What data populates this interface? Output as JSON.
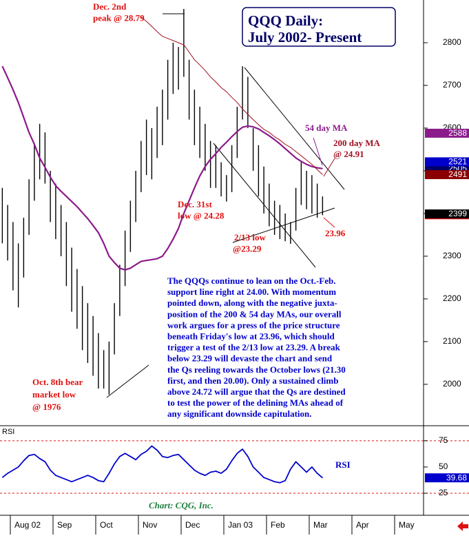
{
  "chart_data": [
    {
      "type": "hl-bar",
      "title": [
        "QQQ Daily:",
        "July 2002- Present"
      ],
      "categories": [
        null,
        null,
        "Aug 02",
        null,
        null,
        null,
        null,
        null,
        null,
        null,
        "Sep",
        null,
        null,
        null,
        null,
        null,
        null,
        null,
        "Oct",
        null,
        null,
        null,
        null,
        null,
        null,
        null,
        "Nov",
        null,
        null,
        null,
        null,
        null,
        null,
        null,
        "Dec",
        null,
        null,
        null,
        null,
        null,
        null,
        null,
        "Jan 03",
        null,
        null,
        null,
        null,
        null,
        null,
        null,
        "Feb",
        null,
        null,
        null,
        null,
        null,
        null,
        null,
        "Mar",
        null,
        null,
        null,
        null,
        null,
        null,
        null,
        "Apr",
        null,
        null,
        null,
        null,
        null,
        null,
        null,
        "May",
        null,
        null,
        null
      ],
      "color": "#000000",
      "high": [
        2460,
        2420,
        2380,
        2330,
        2390,
        2480,
        2560,
        2610,
        2590,
        2500,
        2470,
        2420,
        2380,
        2320,
        2270,
        2230,
        2190,
        2160,
        2120,
        2080,
        2100,
        2190,
        2280,
        2360,
        2430,
        2500,
        2570,
        2620,
        2600,
        2650,
        2690,
        2760,
        2800,
        2790,
        2879,
        2760,
        2690,
        2650,
        2610,
        2570,
        2560,
        2520,
        2490,
        2560,
        2650,
        2745,
        2720,
        2600,
        2560,
        2510,
        2470,
        2430,
        2420,
        2400,
        2380,
        2460,
        2520,
        2500,
        2490,
        2470,
        2440,
        null,
        null,
        null,
        null,
        null,
        null,
        null,
        null,
        null,
        null,
        null,
        null,
        null,
        null,
        null,
        null,
        null
      ],
      "low": [
        2330,
        2290,
        2220,
        2180,
        2250,
        2350,
        2430,
        2480,
        2470,
        2380,
        2340,
        2300,
        2230,
        2170,
        2130,
        2080,
        2050,
        2020,
        1990,
        1990,
        1976,
        2070,
        2160,
        2230,
        2310,
        2380,
        2450,
        2490,
        2480,
        2530,
        2560,
        2620,
        2680,
        2690,
        2720,
        2620,
        2560,
        2530,
        2500,
        2460,
        2460,
        2440,
        2428,
        2450,
        2530,
        2620,
        2600,
        2500,
        2440,
        2400,
        2370,
        2350,
        2340,
        2335,
        2329,
        2360,
        2420,
        2410,
        2400,
        2390,
        2396,
        null,
        null,
        null,
        null,
        null,
        null,
        null,
        null,
        null,
        null,
        null,
        null,
        null,
        null,
        null,
        null,
        null
      ],
      "series": [
        {
          "name": "54 day MA",
          "color": "#8b1a8b",
          "values": [
            2745,
            2718,
            2690,
            2660,
            2625,
            2590,
            2562,
            2530,
            2508,
            2485,
            2465,
            2452,
            2440,
            2428,
            2416,
            2402,
            2388,
            2372,
            2355,
            2330,
            2300,
            2285,
            2272,
            2268,
            2272,
            2280,
            2288,
            2290,
            2292,
            2294,
            2300,
            2318,
            2340,
            2365,
            2400,
            2430,
            2460,
            2488,
            2510,
            2527,
            2540,
            2555,
            2567,
            2580,
            2592,
            2602,
            2605,
            2603,
            2598,
            2590,
            2582,
            2573,
            2563,
            2552,
            2541,
            2530,
            2522,
            2515,
            2510,
            2507,
            2505,
            null,
            null,
            null,
            null,
            null,
            null,
            null,
            null,
            null,
            null,
            null,
            null,
            null,
            null,
            null,
            null,
            null
          ]
        },
        {
          "name": "200 day MA",
          "color": "#a01020",
          "values": [
            null,
            null,
            null,
            null,
            null,
            null,
            null,
            null,
            null,
            null,
            null,
            null,
            null,
            null,
            null,
            null,
            null,
            null,
            null,
            null,
            null,
            null,
            null,
            null,
            null,
            null,
            2860,
            2850,
            2838,
            2826,
            2815,
            2810,
            2805,
            2800,
            2795,
            2778,
            2760,
            2748,
            2735,
            2720,
            2708,
            2695,
            2685,
            2672,
            2660,
            2645,
            2632,
            2620,
            2608,
            2597,
            2590,
            2580,
            2572,
            2562,
            2555,
            2545,
            2535,
            2525,
            2515,
            2503,
            2491,
            null,
            null,
            null,
            null,
            null,
            null,
            null,
            null,
            null,
            null,
            null,
            null,
            null,
            null,
            null,
            null,
            null
          ]
        }
      ],
      "ylim": [
        1903,
        2900
      ],
      "yticks": [
        2000,
        2100,
        2200,
        2300,
        2400,
        2500,
        2600,
        2700,
        2800
      ],
      "price_markers": [
        {
          "value": 2588,
          "color": "#8b1a8b"
        },
        {
          "value": 2397,
          "color": "#e01010"
        },
        {
          "value": 2521,
          "color": "#0000cc"
        },
        {
          "value": 2399,
          "color": "#000000"
        }
      ],
      "annotations": [
        {
          "lines": [
            "Dec. 2nd",
            "peak @ 28.79"
          ],
          "color": "#e01010"
        },
        {
          "lines": [
            "Dec. 31st",
            "low @ 24.28"
          ],
          "color": "#e01010"
        },
        {
          "lines": [
            "2/13  low",
            "@23.29"
          ],
          "color": "#e01010"
        },
        {
          "lines": [
            "23.96"
          ],
          "color": "#e01010"
        },
        {
          "lines": [
            "Oct. 8th bear",
            "market low",
            "@ 1976"
          ],
          "color": "#e01010"
        },
        {
          "lines": [
            "@ 24.91"
          ],
          "color": "#a01020"
        }
      ],
      "commentary": {
        "color": "#0000cc",
        "lines": [
          "The QQQs continue to lean on the Oct.-Feb.",
          "support line right at 24.00. With momentum",
          "pointed down, along with the negative juxta-",
          "position of the 200 & 54 day MAs, our overall",
          "work argues for a press of the price structure",
          "beneath Friday's low at 23.96, which should",
          "trigger a test of the 2/13 low at 23.29. A break",
          "below  23.29 will devaste the chart and send",
          "the Qs reeling towards the October lows (21.30",
          "first, and then 20.00). Only a sustained climb",
          "above 24.72 will argue that the Qs are destined",
          "to test the power of the delining MAs ahead of",
          "any significant downside capitulation."
        ]
      }
    },
    {
      "type": "line",
      "panel_label": "RSI",
      "series": [
        {
          "name": "RSI",
          "color": "#0000cc",
          "values": [
            40,
            44,
            47,
            50,
            56,
            61,
            62,
            58,
            55,
            47,
            42,
            40,
            38,
            36,
            38,
            40,
            42,
            40,
            37,
            36,
            44,
            53,
            60,
            63,
            60,
            57,
            62,
            65,
            70,
            66,
            60,
            59,
            61,
            62,
            57,
            52,
            47,
            44,
            42,
            45,
            46,
            44,
            48,
            56,
            63,
            67,
            60,
            50,
            45,
            40,
            38,
            36,
            35,
            37,
            48,
            55,
            50,
            45,
            50,
            44,
            39.68,
            null,
            null,
            null,
            null,
            null,
            null,
            null,
            null,
            null,
            null,
            null,
            null,
            null,
            null,
            null,
            null,
            null
          ]
        }
      ],
      "ylim": [
        6,
        88
      ],
      "yticks": [
        25,
        50,
        75
      ],
      "guides": [
        25,
        75
      ],
      "source": "Chart: CQG, Inc."
    }
  ]
}
